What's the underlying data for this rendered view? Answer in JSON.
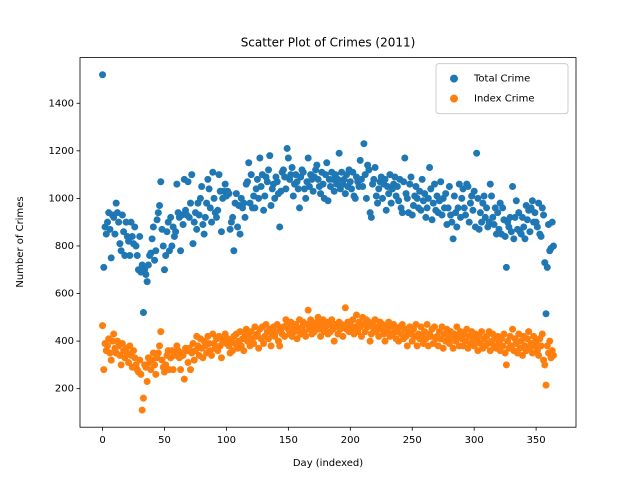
{
  "chart_data": {
    "type": "scatter",
    "title": "Scatter Plot of Crimes (2011)",
    "x_label": "Day (indexed)",
    "y_label": "Number of Crimes",
    "xlim": [
      -18.2,
      382.2
    ],
    "ylim": [
      38,
      1592
    ],
    "xticks": [
      0,
      50,
      100,
      150,
      200,
      250,
      300,
      350
    ],
    "yticks": [
      200,
      400,
      600,
      800,
      1000,
      1200,
      1400
    ],
    "legend": "upper right",
    "grid": false,
    "x": [
      0,
      1,
      2,
      3,
      4,
      5,
      6,
      7,
      8,
      9,
      10,
      11,
      12,
      13,
      14,
      15,
      16,
      17,
      18,
      19,
      20,
      21,
      22,
      23,
      24,
      25,
      26,
      27,
      28,
      29,
      30,
      31,
      32,
      33,
      34,
      35,
      36,
      37,
      38,
      39,
      40,
      41,
      42,
      43,
      44,
      45,
      46,
      47,
      48,
      49,
      50,
      51,
      52,
      53,
      54,
      55,
      56,
      57,
      58,
      59,
      60,
      61,
      62,
      63,
      64,
      65,
      66,
      67,
      68,
      69,
      70,
      71,
      72,
      73,
      74,
      75,
      76,
      77,
      78,
      79,
      80,
      81,
      82,
      83,
      84,
      85,
      86,
      87,
      88,
      89,
      90,
      91,
      92,
      93,
      94,
      95,
      96,
      97,
      98,
      99,
      100,
      101,
      102,
      103,
      104,
      105,
      106,
      107,
      108,
      109,
      110,
      111,
      112,
      113,
      114,
      115,
      116,
      117,
      118,
      119,
      120,
      121,
      122,
      123,
      124,
      125,
      126,
      127,
      128,
      129,
      130,
      131,
      132,
      133,
      134,
      135,
      136,
      137,
      138,
      139,
      140,
      141,
      142,
      143,
      144,
      145,
      146,
      147,
      148,
      149,
      150,
      151,
      152,
      153,
      154,
      155,
      156,
      157,
      158,
      159,
      160,
      161,
      162,
      163,
      164,
      165,
      166,
      167,
      168,
      169,
      170,
      171,
      172,
      173,
      174,
      175,
      176,
      177,
      178,
      179,
      180,
      181,
      182,
      183,
      184,
      185,
      186,
      187,
      188,
      189,
      190,
      191,
      192,
      193,
      194,
      195,
      196,
      197,
      198,
      199,
      200,
      201,
      202,
      203,
      204,
      205,
      206,
      207,
      208,
      209,
      210,
      211,
      212,
      213,
      214,
      215,
      216,
      217,
      218,
      219,
      220,
      221,
      222,
      223,
      224,
      225,
      226,
      227,
      228,
      229,
      230,
      231,
      232,
      233,
      234,
      235,
      236,
      237,
      238,
      239,
      240,
      241,
      242,
      243,
      244,
      245,
      246,
      247,
      248,
      249,
      250,
      251,
      252,
      253,
      254,
      255,
      256,
      257,
      258,
      259,
      260,
      261,
      262,
      263,
      264,
      265,
      266,
      267,
      268,
      269,
      270,
      271,
      272,
      273,
      274,
      275,
      276,
      277,
      278,
      279,
      280,
      281,
      282,
      283,
      284,
      285,
      286,
      287,
      288,
      289,
      290,
      291,
      292,
      293,
      294,
      295,
      296,
      297,
      298,
      299,
      300,
      301,
      302,
      303,
      304,
      305,
      306,
      307,
      308,
      309,
      310,
      311,
      312,
      313,
      314,
      315,
      316,
      317,
      318,
      319,
      320,
      321,
      322,
      323,
      324,
      325,
      326,
      327,
      328,
      329,
      330,
      331,
      332,
      333,
      334,
      335,
      336,
      337,
      338,
      339,
      340,
      341,
      342,
      343,
      344,
      345,
      346,
      347,
      348,
      349,
      350,
      351,
      352,
      353,
      354,
      355,
      356,
      357,
      358,
      359,
      360,
      361,
      362,
      363,
      364
    ],
    "series": [
      {
        "name": "Total Crime",
        "color": "#1f77b4",
        "values": [
          1520,
          710,
          880,
          850,
          900,
          940,
          870,
          750,
          930,
          920,
          850,
          980,
          940,
          900,
          810,
          780,
          930,
          860,
          760,
          900,
          840,
          820,
          760,
          900,
          840,
          810,
          880,
          800,
          760,
          700,
          840,
          690,
          720,
          520,
          700,
          680,
          650,
          720,
          760,
          770,
          830,
          880,
          740,
          780,
          910,
          940,
          970,
          1070,
          870,
          800,
          700,
          760,
          860,
          900,
          780,
          920,
          800,
          880,
          840,
          860,
          1060,
          940,
          920,
          780,
          930,
          890,
          1080,
          950,
          930,
          1070,
          920,
          980,
          1100,
          810,
          900,
          940,
          870,
          980,
          930,
          1000,
          1050,
          890,
          850,
          920,
          980,
          1080,
          1040,
          960,
          900,
          1110,
          1000,
          940,
          920,
          950,
          1100,
          1030,
          860,
          1000,
          1030,
          1060,
          1010,
          1030,
          1020,
          870,
          900,
          920,
          780,
          980,
          1020,
          880,
          970,
          850,
          1000,
          960,
          980,
          920,
          1060,
          1070,
          1150,
          980,
          1100,
          960,
          1010,
          960,
          1040,
          1080,
          1000,
          1170,
          1050,
          1100,
          950,
          1010,
          1090,
          1070,
          1120,
          1180,
          970,
          1040,
          1060,
          1000,
          1090,
          1070,
          1020,
          880,
          1030,
          1110,
          1120,
          1090,
          1040,
          1210,
          1170,
          1080,
          1100,
          1130,
          1010,
          1060,
          1100,
          1070,
          1040,
          960,
          1090,
          1120,
          1110,
          1040,
          1000,
          1070,
          1170,
          1050,
          1100,
          1080,
          1030,
          1090,
          1120,
          1140,
          1080,
          1050,
          1020,
          1110,
          1060,
          1000,
          1100,
          1150,
          990,
          1080,
          1050,
          1110,
          1080,
          1030,
          1100,
          1060,
          1080,
          1190,
          1040,
          1110,
          1060,
          1080,
          1020,
          1100,
          1050,
          1120,
          1070,
          1040,
          1110,
          1010,
          1000,
          1090,
          1070,
          1050,
          1160,
          1080,
          1050,
          1230,
          1100,
          1000,
          1140,
          1120,
          940,
          920,
          1060,
          1080,
          1130,
          1010,
          980,
          1040,
          1070,
          1090,
          1000,
          1060,
          1080,
          950,
          1050,
          1020,
          1100,
          980,
          1040,
          1060,
          1090,
          1010,
          1050,
          990,
          1080,
          960,
          940,
          1070,
          1170,
          1020,
          1000,
          940,
          1060,
          1090,
          930,
          970,
          1010,
          1050,
          1000,
          960,
          1030,
          950,
          1080,
          990,
          1020,
          920,
          960,
          1000,
          1130,
          1040,
          910,
          980,
          1060,
          950,
          1010,
          940,
          990,
          1070,
          930,
          1000,
          960,
          1020,
          890,
          960,
          1050,
          930,
          900,
          830,
          1010,
          940,
          880,
          960,
          1060,
          920,
          1000,
          1040,
          960,
          930,
          1060,
          1050,
          900,
          980,
          1010,
          950,
          1030,
          880,
          1190,
          1000,
          870,
          940,
          900,
          980,
          1010,
          920,
          960,
          880,
          900,
          1060,
          1010,
          920,
          890,
          960,
          850,
          940,
          870,
          980,
          850,
          960,
          910,
          840,
          710,
          900,
          880,
          920,
          860,
          1050,
          830,
          920,
          990,
          870,
          940,
          860,
          850,
          920,
          880,
          830,
          970,
          910,
          950,
          860,
          960,
          990,
          900,
          940,
          900,
          880,
          980,
          850,
          840,
          960,
          930,
          730,
          515,
          710,
          890,
          780,
          790,
          900,
          800
        ]
      },
      {
        "name": "Index Crime",
        "color": "#ff7f0e",
        "values": [
          465,
          280,
          390,
          360,
          380,
          410,
          350,
          320,
          400,
          430,
          370,
          350,
          400,
          380,
          340,
          300,
          390,
          360,
          330,
          370,
          350,
          310,
          380,
          340,
          290,
          360,
          330,
          300,
          280,
          270,
          320,
          260,
          110,
          160,
          300,
          290,
          230,
          330,
          310,
          280,
          320,
          350,
          300,
          260,
          330,
          350,
          380,
          440,
          320,
          290,
          270,
          300,
          340,
          360,
          280,
          330,
          360,
          280,
          340,
          350,
          380,
          360,
          330,
          280,
          350,
          340,
          240,
          370,
          360,
          310,
          370,
          280,
          350,
          390,
          320,
          360,
          420,
          380,
          340,
          410,
          370,
          330,
          400,
          380,
          350,
          420,
          390,
          360,
          340,
          430,
          390,
          370,
          410,
          360,
          420,
          380,
          330,
          400,
          410,
          430,
          390,
          410,
          380,
          350,
          400,
          360,
          420,
          390,
          430,
          370,
          400,
          440,
          380,
          410,
          360,
          430,
          450,
          400,
          420,
          380,
          440,
          410,
          390,
          460,
          420,
          430,
          370,
          450,
          410,
          460,
          390,
          420,
          470,
          440,
          410,
          450,
          380,
          430,
          460,
          420,
          440,
          470,
          400,
          380,
          450,
          430,
          460,
          420,
          490,
          470,
          450,
          430,
          480,
          420,
          460,
          440,
          470,
          410,
          450,
          490,
          430,
          460,
          480,
          440,
          420,
          470,
          530,
          450,
          490,
          430,
          470,
          440,
          460,
          480,
          500,
          450,
          420,
          470,
          490,
          440,
          460,
          480,
          430,
          470,
          440,
          490,
          450,
          400,
          470,
          460,
          430,
          480,
          450,
          470,
          420,
          460,
          540,
          450,
          480,
          440,
          470,
          450,
          490,
          430,
          460,
          510,
          440,
          480,
          460,
          420,
          500,
          470,
          440,
          490,
          460,
          480,
          400,
          430,
          470,
          450,
          490,
          440,
          460,
          420,
          480,
          450,
          470,
          430,
          400,
          460,
          440,
          480,
          420,
          460,
          430,
          470,
          450,
          410,
          440,
          400,
          460,
          430,
          470,
          410,
          450,
          420,
          380,
          440,
          460,
          430,
          400,
          450,
          420,
          470,
          380,
          430,
          410,
          460,
          420,
          390,
          440,
          410,
          470,
          380,
          430,
          420,
          450,
          390,
          460,
          410,
          420,
          380,
          440,
          410,
          460,
          370,
          430,
          400,
          450,
          420,
          390,
          440,
          410,
          370,
          430,
          400,
          460,
          420,
          380,
          440,
          410,
          380,
          430,
          400,
          450,
          370,
          420,
          390,
          440,
          410,
          380,
          430,
          400,
          360,
          420,
          390,
          440,
          370,
          410,
          380,
          420,
          390,
          440,
          360,
          400,
          430,
          380,
          410,
          370,
          420,
          390,
          360,
          410,
          380,
          430,
          350,
          300,
          400,
          370,
          420,
          380,
          450,
          360,
          410,
          390,
          350,
          430,
          370,
          400,
          340,
          420,
          380,
          360,
          410,
          440,
          370,
          390,
          350,
          420,
          380,
          400,
          360,
          340,
          410,
          380,
          430,
          320,
          300,
          215,
          380,
          350,
          400,
          330,
          360,
          340
        ]
      }
    ]
  }
}
